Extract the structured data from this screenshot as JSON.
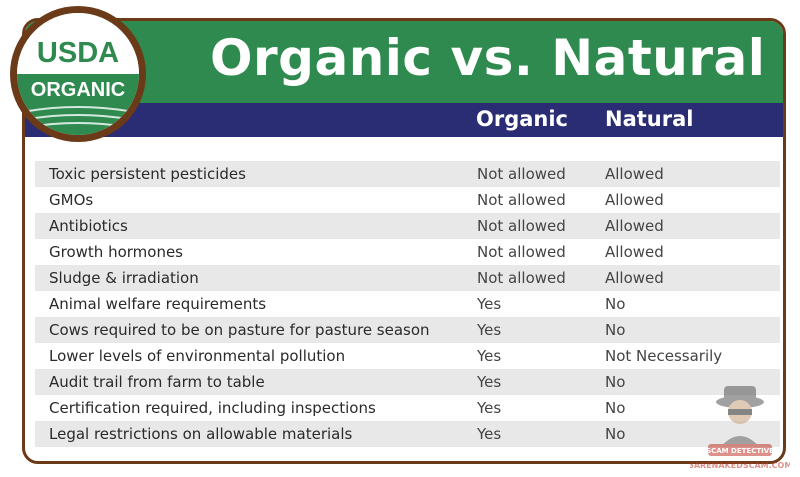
{
  "title": "Organic vs. Natural",
  "seal": {
    "line1": "USDA",
    "line2": "ORGANIC"
  },
  "columns": {
    "organic": "Organic",
    "natural": "Natural"
  },
  "rows": [
    {
      "label": "Toxic persistent pesticides",
      "organic": "Not allowed",
      "natural": "Allowed"
    },
    {
      "label": "GMOs",
      "organic": "Not allowed",
      "natural": "Allowed"
    },
    {
      "label": "Antibiotics",
      "organic": "Not allowed",
      "natural": "Allowed"
    },
    {
      "label": "Growth hormones",
      "organic": "Not allowed",
      "natural": "Allowed"
    },
    {
      "label": "Sludge & irradiation",
      "organic": "Not allowed",
      "natural": "Allowed"
    },
    {
      "label": "Animal welfare requirements",
      "organic": "Yes",
      "natural": "No"
    },
    {
      "label": "Cows required to be on pasture for pasture season",
      "organic": "Yes",
      "natural": "No"
    },
    {
      "label": "Lower levels of environmental pollution",
      "organic": "Yes",
      "natural": "Not Necessarily"
    },
    {
      "label": "Audit trail from farm to table",
      "organic": "Yes",
      "natural": "No"
    },
    {
      "label": "Certification required, including inspections",
      "organic": "Yes",
      "natural": "No"
    },
    {
      "label": "Legal restrictions on allowable materials",
      "organic": "Yes",
      "natural": "No"
    }
  ],
  "watermark": {
    "badge": "SCAM DETECTIVE",
    "site": "BARENAKEDSCAM.COM"
  },
  "colors": {
    "green": "#2f8a4f",
    "navy": "#2b2d74",
    "brown": "#6b3a18",
    "shade": "#e8e8e8"
  }
}
